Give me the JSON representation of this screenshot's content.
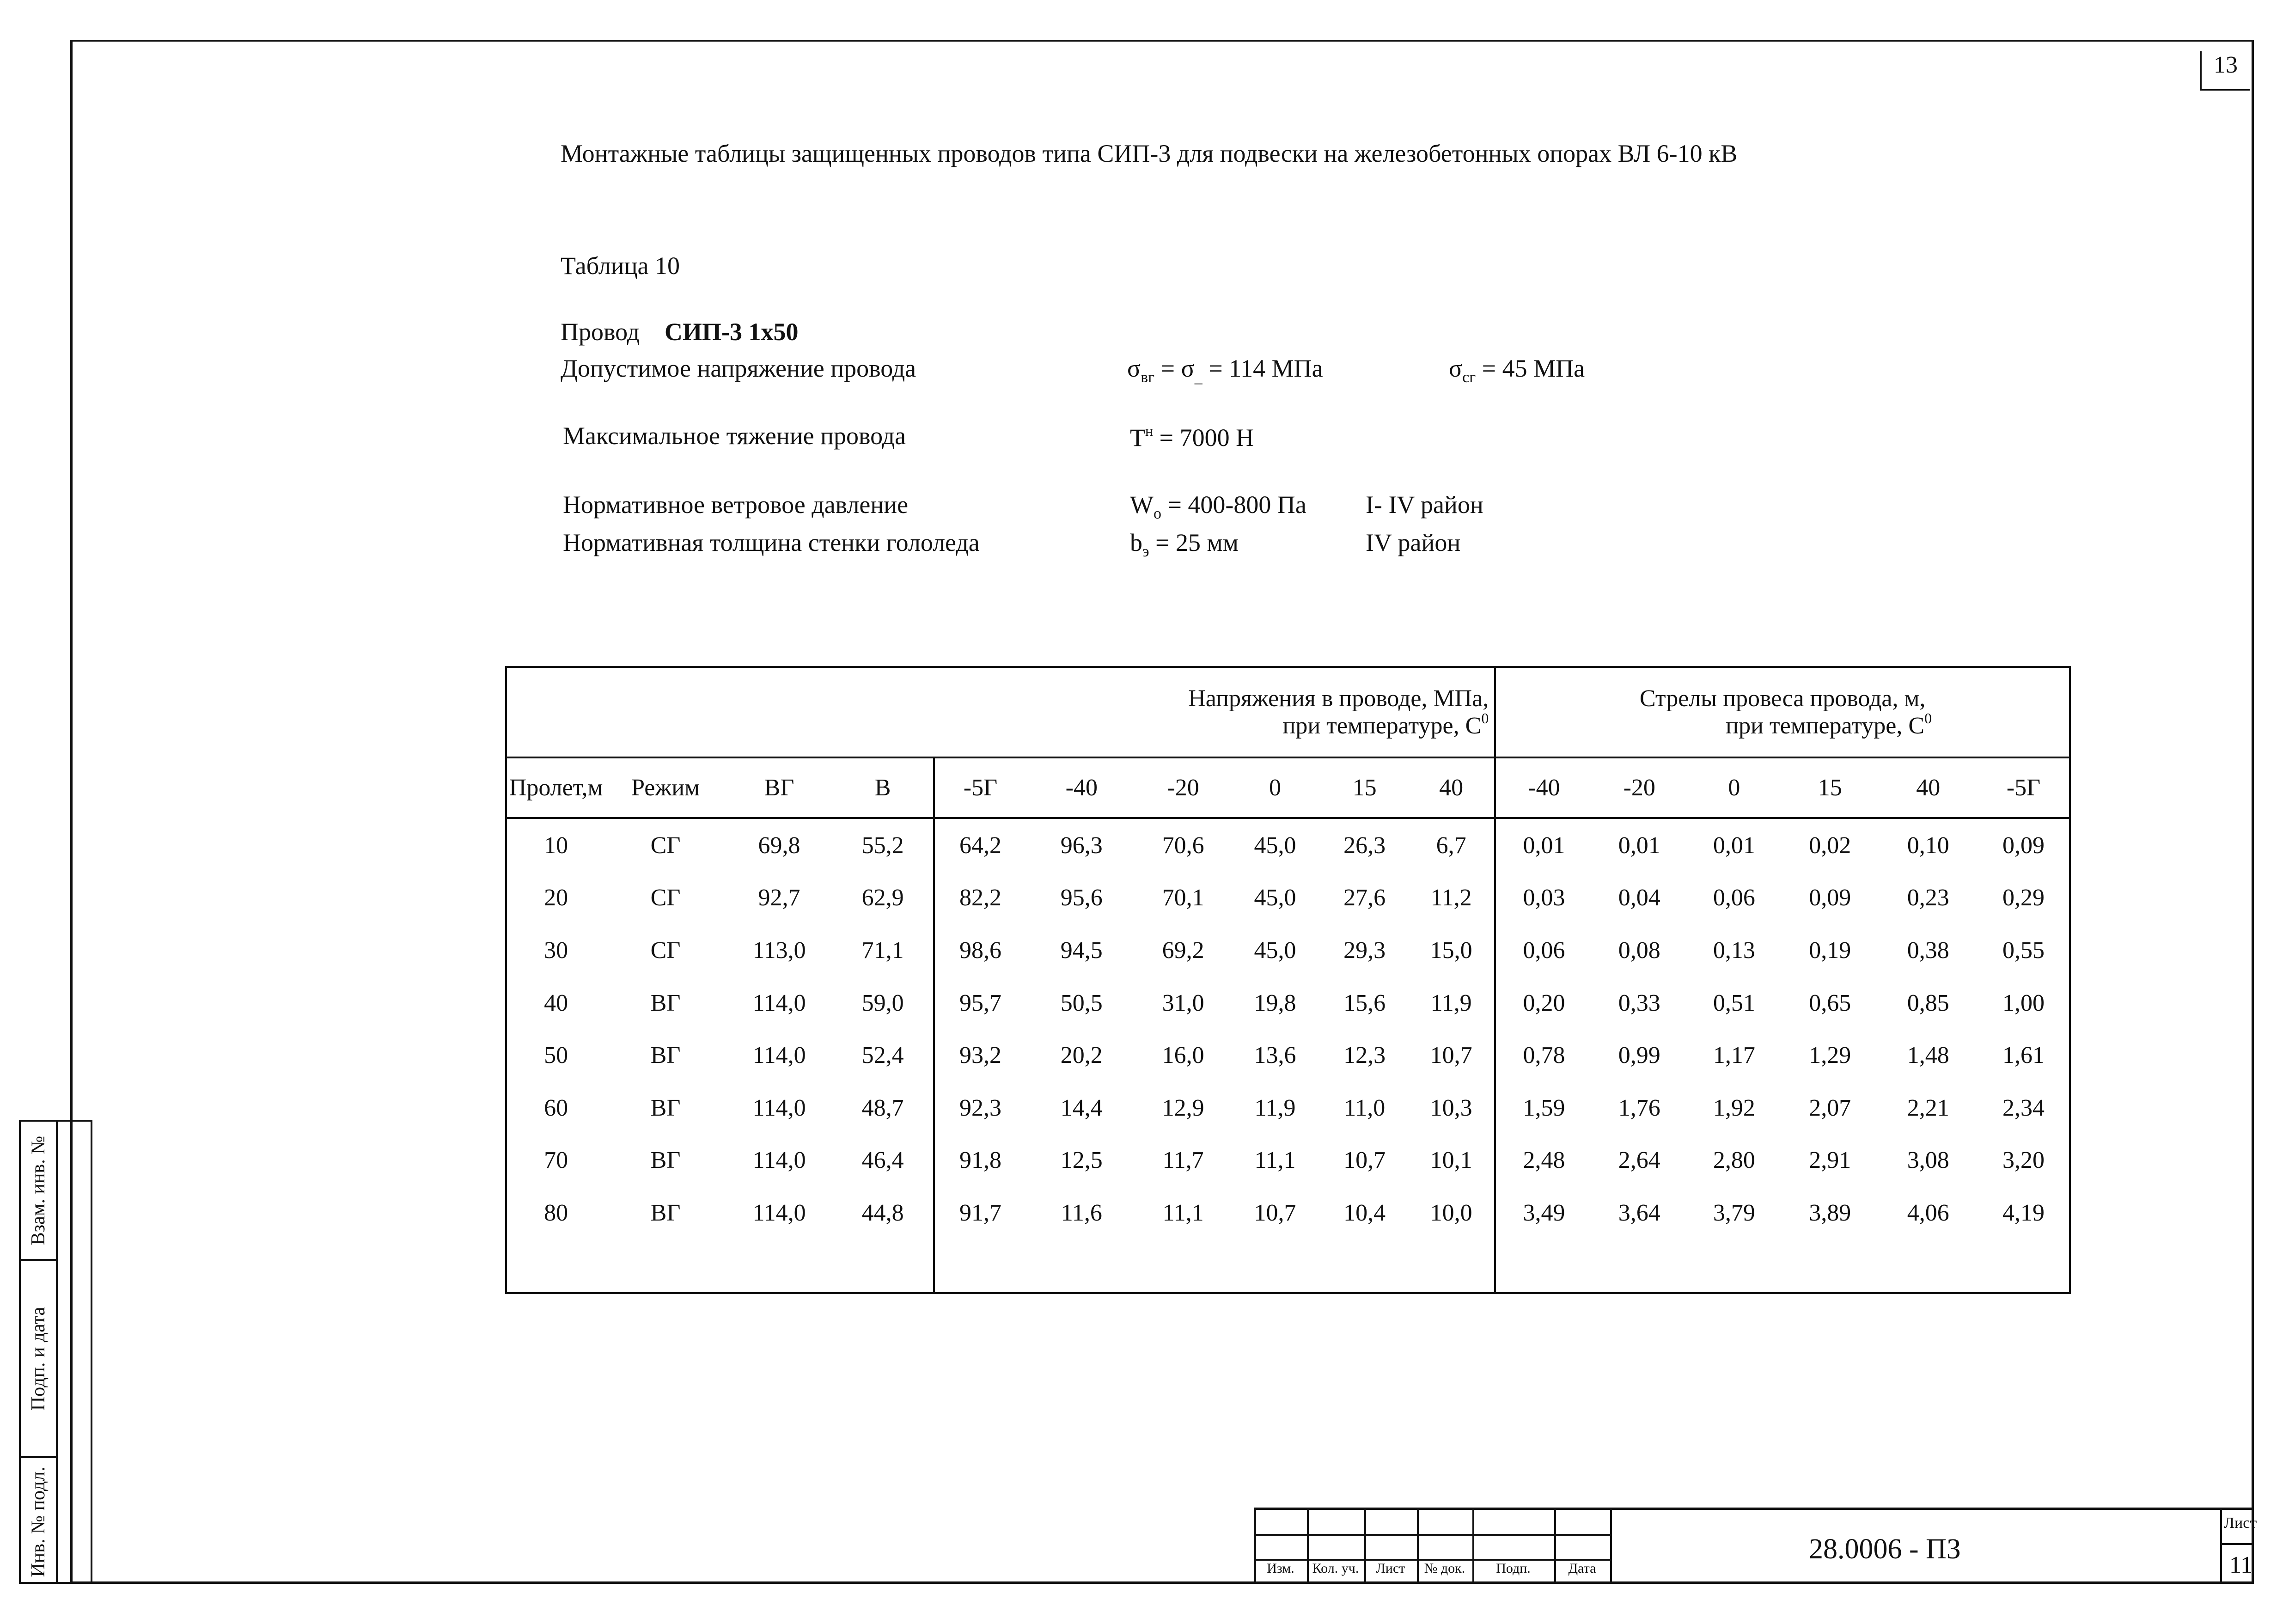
{
  "page_number": "13",
  "title": "Монтажные  таблицы  защищенных  проводов типа СИП-3  для  подвески  на  железобетонных опорах  ВЛ 6-10 кВ",
  "table_label": "Таблица   10",
  "params": {
    "wire_label": "Провод",
    "wire_value": "СИП-3  1х50",
    "stress_label": "Допустимое  напряжение  провода",
    "stress_sigma": "σ",
    "stress_sub1": "вг",
    "stress_mid": " = σ",
    "stress_sub2": "_",
    "stress_value": "  = 114 МПа",
    "stress2_sigma": "σ",
    "stress2_sub": "сг",
    "stress2_value": " = 45 МПа",
    "tension_label": "Максимальное  тяжение  провода",
    "tension_T": "T",
    "tension_sup": "н",
    "tension_value": " = 7000 Н",
    "wind_label": "Нормативное  ветровое  давление",
    "wind_W": "W",
    "wind_sub": "o",
    "wind_value": " = 400-800 Па",
    "wind_region": "I- IV  район",
    "ice_label": "Нормативная  толщина стенки гололеда",
    "ice_b": "b",
    "ice_sub": "э",
    "ice_value": "  = 25 мм",
    "ice_region": "IV  район"
  },
  "table": {
    "group1_line1": "Напряжения в проводе, МПа,",
    "group1_line2": "при температуре, С",
    "group1_sup": "0",
    "group2_line1": "Стрелы провеса провода, м,",
    "group2_line2": "при температуре, С",
    "group2_sup": "0",
    "columns": [
      "Пролет,м",
      "Режим",
      "ВГ",
      "В",
      "-5Г",
      "-40",
      "-20",
      "0",
      "15",
      "40",
      "-40",
      "-20",
      "0",
      "15",
      "40",
      "-5Г"
    ],
    "rows": [
      [
        "10",
        "СГ",
        "69,8",
        "55,2",
        "64,2",
        "96,3",
        "70,6",
        "45,0",
        "26,3",
        "6,7",
        "0,01",
        "0,01",
        "0,01",
        "0,02",
        "0,10",
        "0,09"
      ],
      [
        "20",
        "СГ",
        "92,7",
        "62,9",
        "82,2",
        "95,6",
        "70,1",
        "45,0",
        "27,6",
        "11,2",
        "0,03",
        "0,04",
        "0,06",
        "0,09",
        "0,23",
        "0,29"
      ],
      [
        "30",
        "СГ",
        "113,0",
        "71,1",
        "98,6",
        "94,5",
        "69,2",
        "45,0",
        "29,3",
        "15,0",
        "0,06",
        "0,08",
        "0,13",
        "0,19",
        "0,38",
        "0,55"
      ],
      [
        "40",
        "ВГ",
        "114,0",
        "59,0",
        "95,7",
        "50,5",
        "31,0",
        "19,8",
        "15,6",
        "11,9",
        "0,20",
        "0,33",
        "0,51",
        "0,65",
        "0,85",
        "1,00"
      ],
      [
        "50",
        "ВГ",
        "114,0",
        "52,4",
        "93,2",
        "20,2",
        "16,0",
        "13,6",
        "12,3",
        "10,7",
        "0,78",
        "0,99",
        "1,17",
        "1,29",
        "1,48",
        "1,61"
      ],
      [
        "60",
        "ВГ",
        "114,0",
        "48,7",
        "92,3",
        "14,4",
        "12,9",
        "11,9",
        "11,0",
        "10,3",
        "1,59",
        "1,76",
        "1,92",
        "2,07",
        "2,21",
        "2,34"
      ],
      [
        "70",
        "ВГ",
        "114,0",
        "46,4",
        "91,8",
        "12,5",
        "11,7",
        "11,1",
        "10,7",
        "10,1",
        "2,48",
        "2,64",
        "2,80",
        "2,91",
        "3,08",
        "3,20"
      ],
      [
        "80",
        "ВГ",
        "114,0",
        "44,8",
        "91,7",
        "11,6",
        "11,1",
        "10,7",
        "10,4",
        "10,0",
        "3,49",
        "3,64",
        "3,79",
        "3,89",
        "4,06",
        "4,19"
      ]
    ]
  },
  "side_stamp": [
    "Взам. инв. №",
    "Подп. и дата",
    "Инв. № подл."
  ],
  "title_block": {
    "columns": [
      "Изм.",
      "Кол. уч.",
      "Лист",
      "№ док.",
      "Подп.",
      "Дата"
    ],
    "code": "28.0006  -  ПЗ",
    "sheet_label": "Лист",
    "sheet_number": "11"
  }
}
